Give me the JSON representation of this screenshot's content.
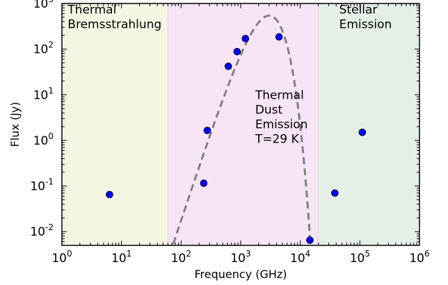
{
  "chart_data": {
    "type": "scatter",
    "xlabel": "Frequency (GHz)",
    "ylabel": "Flux (Jy)",
    "xscale": "log",
    "yscale": "log",
    "xlim": [
      1,
      1000000
    ],
    "ylim": [
      0.005,
      1000
    ],
    "grid": false,
    "x_ticks": [
      {
        "base": "10",
        "exp": "0",
        "value": 1
      },
      {
        "base": "10",
        "exp": "1",
        "value": 10
      },
      {
        "base": "10",
        "exp": "2",
        "value": 100
      },
      {
        "base": "10",
        "exp": "3",
        "value": 1000
      },
      {
        "base": "10",
        "exp": "4",
        "value": 10000
      },
      {
        "base": "10",
        "exp": "5",
        "value": 100000
      },
      {
        "base": "10",
        "exp": "6",
        "value": 1000000
      }
    ],
    "y_ticks": [
      {
        "base": "10",
        "exp": "-2",
        "value": 0.01
      },
      {
        "base": "10",
        "exp": "-1",
        "value": 0.1
      },
      {
        "base": "10",
        "exp": "0",
        "value": 1
      },
      {
        "base": "10",
        "exp": "1",
        "value": 10
      },
      {
        "base": "10",
        "exp": "2",
        "value": 100
      },
      {
        "base": "10",
        "exp": "3",
        "value": 1000
      }
    ],
    "regions": [
      {
        "lines": [
          "Thermal",
          "Bremsstrahlung"
        ],
        "x_range": [
          1,
          60
        ],
        "color": "#f5f5e4",
        "label_x": 1.25,
        "label_y": 600,
        "anchor": "start"
      },
      {
        "lines": [
          "Thermal",
          "Dust",
          "Emission",
          "T=29 K"
        ],
        "x_range": [
          60,
          20000
        ],
        "color": "#f7e4f5",
        "label_x": 1750,
        "label_y": 8,
        "anchor": "start"
      },
      {
        "lines": [
          "Stellar",
          "Emission"
        ],
        "x_range": [
          20000,
          1000000
        ],
        "color": "#e5efe5",
        "label_x": 45000,
        "label_y": 600,
        "anchor": "start"
      }
    ],
    "series": [
      {
        "points": [
          {
            "x": 6.3,
            "y": 0.065
          },
          {
            "x": 240,
            "y": 0.115
          },
          {
            "x": 275,
            "y": 1.65
          },
          {
            "x": 620,
            "y": 42
          },
          {
            "x": 870,
            "y": 88
          },
          {
            "x": 1200,
            "y": 170
          },
          {
            "x": 4400,
            "y": 185
          },
          {
            "x": 14500,
            "y": 0.0065
          },
          {
            "x": 38000,
            "y": 0.07
          },
          {
            "x": 110000,
            "y": 1.5
          }
        ],
        "color": "#0000ee",
        "edge_color": "#000033"
      }
    ],
    "model_curve": {
      "label": "Thermal Dust Emission T=29 K",
      "style": "dashed",
      "color": "#808080",
      "temperature_K": 29
    }
  }
}
